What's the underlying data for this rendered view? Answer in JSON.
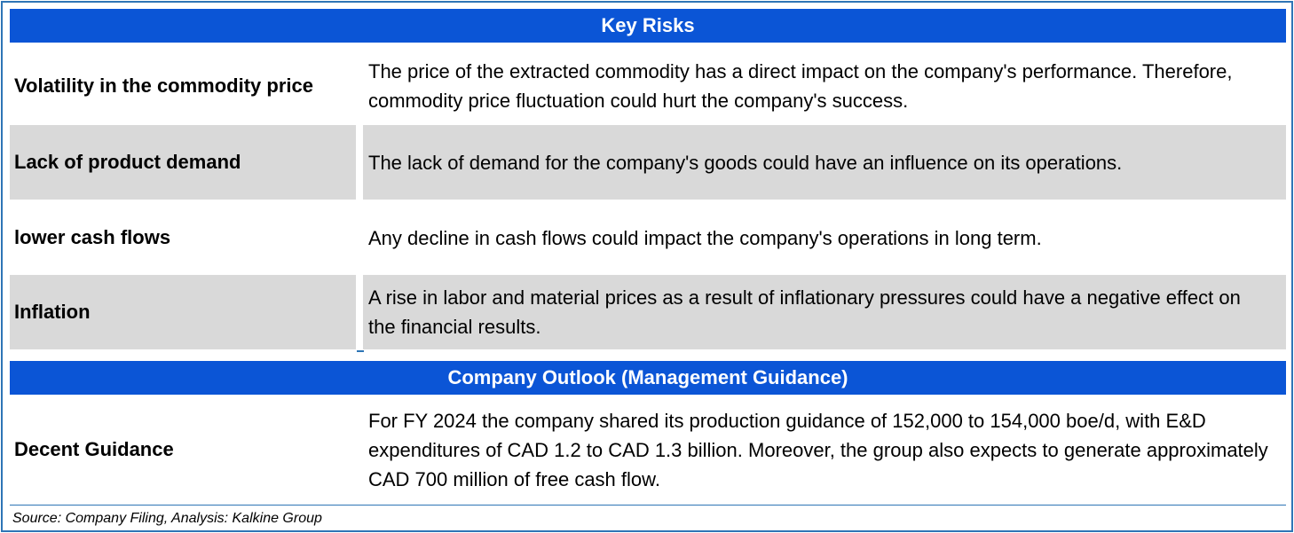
{
  "key_risks": {
    "title": "Key Risks",
    "rows": [
      {
        "label": "Volatility in the commodity price",
        "text": "The price of the extracted commodity has a direct impact on the company's performance. Therefore, commodity price fluctuation could hurt the company's success."
      },
      {
        "label": "Lack of product demand",
        "text": "The lack of demand for the company's goods could have an influence on its operations."
      },
      {
        "label": "lower cash flows",
        "text": "Any decline in cash flows could impact the company's operations in long term."
      },
      {
        "label": "Inflation",
        "text": "A rise in labor and material prices as a result of inflationary pressures could have a negative effect on the financial results."
      }
    ]
  },
  "outlook": {
    "title": "Company Outlook (Management Guidance)",
    "rows": [
      {
        "label": "Decent Guidance",
        "text": "For FY 2024 the company shared its production guidance of 152,000 to 154,000 boe/d, with E&D expenditures of CAD 1.2 to CAD 1.3 billion. Moreover, the group also expects to generate approximately CAD 700 million of free cash flow."
      }
    ]
  },
  "source": "Source: Company Filing, Analysis: Kalkine Group",
  "colors": {
    "header_band": "#0b55d6",
    "shade": "#d9d9d9",
    "border": "#2e75b6"
  }
}
